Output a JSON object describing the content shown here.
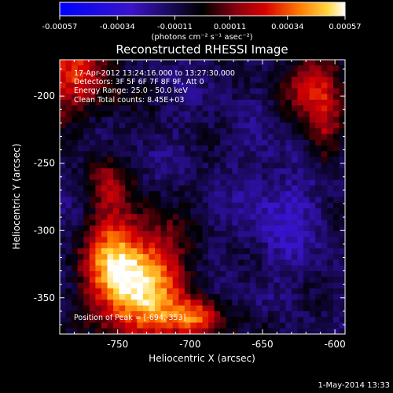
{
  "colorbar": {
    "tick_labels": [
      "-0.00057",
      "-0.00034",
      "-0.00011",
      "0.00011",
      "0.00034",
      "0.00057"
    ],
    "units": "(photons cm⁻² s⁻¹ asec⁻²)",
    "range": [
      -0.00057,
      0.00057
    ]
  },
  "plot": {
    "title": "Reconstructed RHESSI Image",
    "info_lines": [
      "17-Apr-2012 13:24:16.000 to 13:27:30.000",
      "Detectors: 3F 5F 6F 7F 8F 9F, Att 0",
      "Energy Range: 25.0 - 50.0 keV",
      "Clean    Total counts: 8.45E+03"
    ],
    "peak_label": "Position of Peak = [-694,-353]",
    "x_axis": {
      "label": "Heliocentric X (arcsec)",
      "range": [
        -790,
        -593
      ],
      "ticks": [
        -750,
        -700,
        -650,
        -600
      ],
      "tick_labels": [
        "-750",
        "-700",
        "-650",
        "-600"
      ]
    },
    "y_axis": {
      "label": "Heliocentric Y (arcsec)",
      "range": [
        -377,
        -173
      ],
      "ticks": [
        -200,
        -250,
        -300,
        -350
      ],
      "tick_labels": [
        "-200",
        "-250",
        "-300",
        "-350"
      ]
    }
  },
  "footer": {
    "date": "1-May-2014 13:33"
  }
}
